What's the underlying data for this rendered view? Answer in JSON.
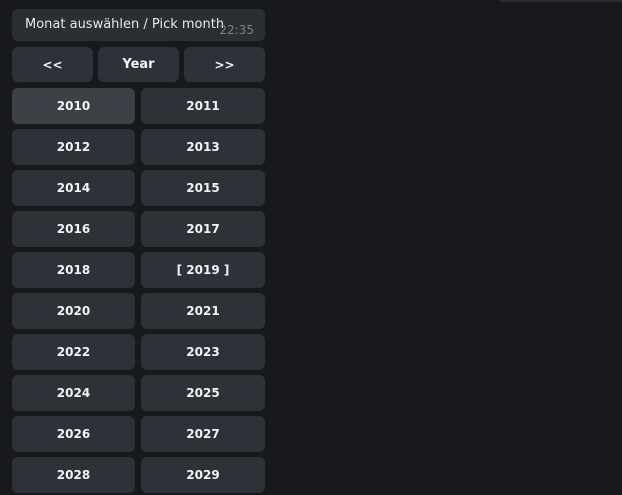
{
  "message": {
    "text": "Monat auswählen / Pick month",
    "time": "22:35"
  },
  "nav": {
    "prev": "<<",
    "title": "Year",
    "next": ">>"
  },
  "years": [
    "2010",
    "2011",
    "2012",
    "2013",
    "2014",
    "2015",
    "2016",
    "2017",
    "2018",
    "[ 2019 ]",
    "2020",
    "2021",
    "2022",
    "2023",
    "2024",
    "2025",
    "2026",
    "2027",
    "2028",
    "2029"
  ],
  "hovered_year": "2010",
  "colors": {
    "background": "#18191d",
    "button": "#2e3238",
    "button_hover": "#3d4046",
    "bubble": "#2b2e33"
  }
}
